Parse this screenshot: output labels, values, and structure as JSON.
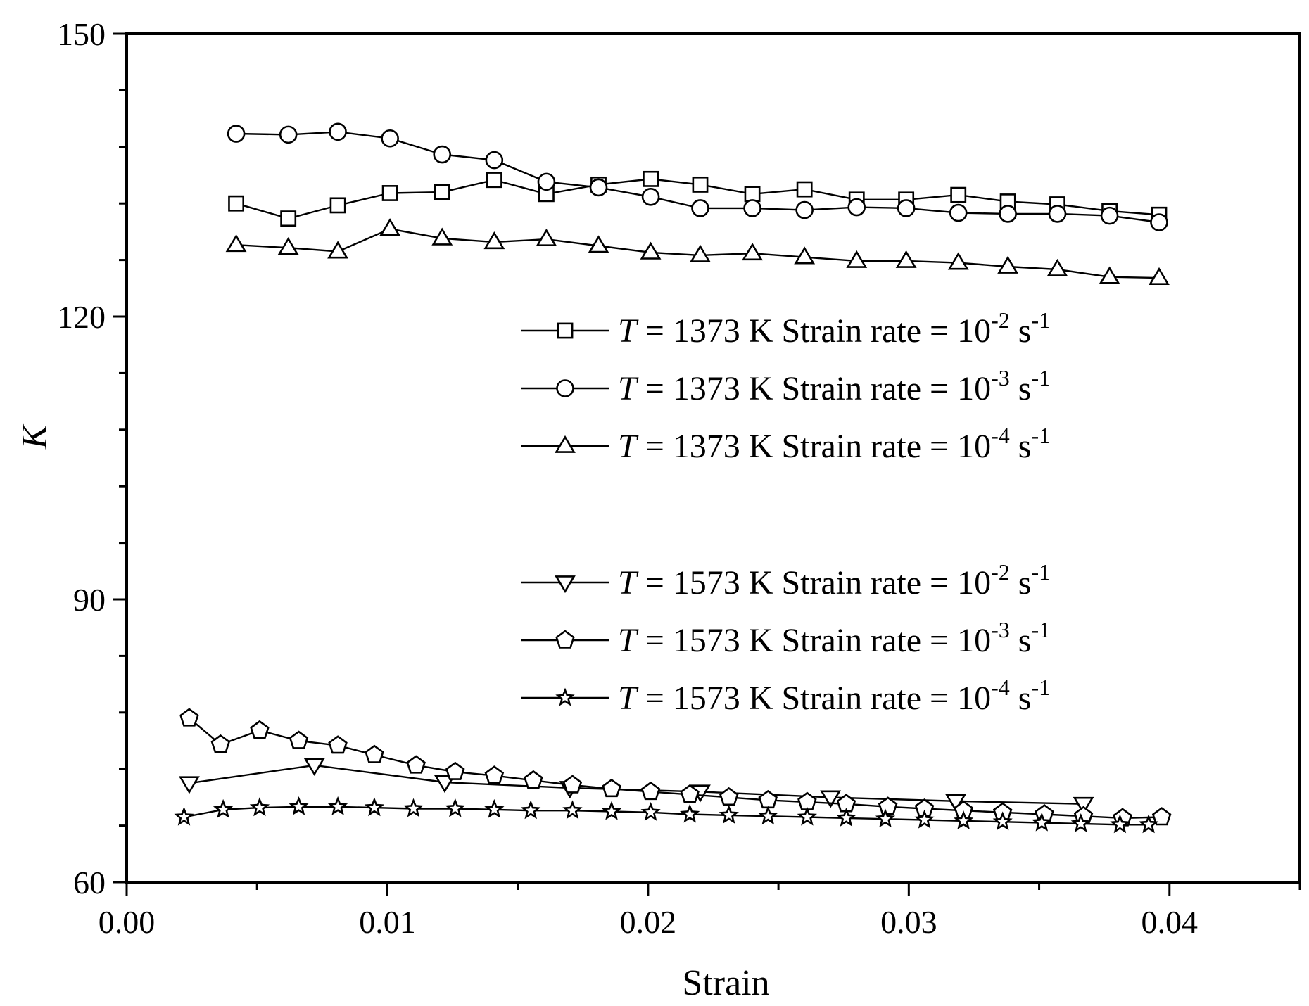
{
  "chart_data": {
    "type": "line",
    "title": "",
    "xlabel": "Strain",
    "ylabel": "K",
    "xlim": [
      0.0,
      0.045
    ],
    "ylim": [
      60,
      150
    ],
    "x_ticks": [
      0.0,
      0.01,
      0.02,
      0.03,
      0.04
    ],
    "x_tick_labels": [
      "0.00",
      "0.01",
      "0.02",
      "0.03",
      "0.04"
    ],
    "y_ticks": [
      60,
      90,
      120,
      150
    ],
    "y_tick_labels": [
      "60",
      "90",
      "120",
      "150"
    ],
    "y_minor_step": 6,
    "x_minor_step": 0.005,
    "legend_position": "right",
    "series": [
      {
        "name": "T = 1373 K Strain rate = 10-2 s-1",
        "legend": {
          "var": "T",
          "text": " = 1373 K Strain rate = 10",
          "exp": "-2",
          "unit": " s",
          "unit_exp": "-1"
        },
        "marker": "square",
        "x": [
          0.0042,
          0.0062,
          0.0081,
          0.0101,
          0.0121,
          0.0141,
          0.0161,
          0.0181,
          0.0201,
          0.022,
          0.024,
          0.026,
          0.028,
          0.0299,
          0.0319,
          0.0338,
          0.0357,
          0.0377,
          0.0396
        ],
        "y": [
          132.0,
          130.4,
          131.8,
          133.1,
          133.2,
          134.5,
          133.0,
          134.0,
          134.6,
          134.0,
          133.0,
          133.5,
          132.4,
          132.4,
          132.9,
          132.2,
          131.9,
          131.2,
          130.8
        ]
      },
      {
        "name": "T = 1373 K Strain rate = 10-3 s-1",
        "legend": {
          "var": "T",
          "text": " = 1373 K Strain rate = 10",
          "exp": "-3",
          "unit": " s",
          "unit_exp": "-1"
        },
        "marker": "circle",
        "x": [
          0.0042,
          0.0062,
          0.0081,
          0.0101,
          0.0121,
          0.0141,
          0.0161,
          0.0181,
          0.0201,
          0.022,
          0.024,
          0.026,
          0.028,
          0.0299,
          0.0319,
          0.0338,
          0.0357,
          0.0377,
          0.0396
        ],
        "y": [
          139.4,
          139.3,
          139.6,
          138.9,
          137.2,
          136.6,
          134.3,
          133.7,
          132.7,
          131.5,
          131.5,
          131.3,
          131.6,
          131.5,
          131.0,
          130.9,
          130.9,
          130.7,
          130.0
        ]
      },
      {
        "name": "T = 1373 K Strain rate = 10-4 s-1",
        "legend": {
          "var": "T",
          "text": " = 1373 K Strain rate = 10",
          "exp": "-4",
          "unit": " s",
          "unit_exp": "-1"
        },
        "marker": "triangle-up",
        "x": [
          0.0042,
          0.0062,
          0.0081,
          0.0101,
          0.0121,
          0.0141,
          0.0161,
          0.0181,
          0.0201,
          0.022,
          0.024,
          0.026,
          0.028,
          0.0299,
          0.0319,
          0.0338,
          0.0357,
          0.0377,
          0.0396
        ],
        "y": [
          127.6,
          127.3,
          126.9,
          129.3,
          128.3,
          127.9,
          128.2,
          127.5,
          126.8,
          126.5,
          126.7,
          126.3,
          125.9,
          125.9,
          125.7,
          125.3,
          125.0,
          124.2,
          124.1
        ]
      },
      {
        "name": "T = 1573 K Strain rate = 10-2 s-1",
        "legend": {
          "var": "T",
          "text": " = 1573 K Strain rate = 10",
          "exp": "-2",
          "unit": " s",
          "unit_exp": "-1"
        },
        "marker": "triangle-down",
        "x": [
          0.0024,
          0.0072,
          0.0122,
          0.017,
          0.022,
          0.027,
          0.0318,
          0.0367
        ],
        "y": [
          70.5,
          72.4,
          70.6,
          70.0,
          69.6,
          69.0,
          68.6,
          68.3
        ]
      },
      {
        "name": "T = 1573 K Strain rate = 10-3 s-1",
        "legend": {
          "var": "T",
          "text": " = 1573 K Strain rate = 10",
          "exp": "-3",
          "unit": " s",
          "unit_exp": "-1"
        },
        "marker": "pentagon",
        "x": [
          0.0024,
          0.0036,
          0.0051,
          0.0066,
          0.0081,
          0.0095,
          0.0111,
          0.0126,
          0.0141,
          0.0156,
          0.0171,
          0.0186,
          0.0201,
          0.0216,
          0.0231,
          0.0246,
          0.0261,
          0.0276,
          0.0292,
          0.0306,
          0.0321,
          0.0336,
          0.0352,
          0.0367,
          0.0382,
          0.0397
        ],
        "y": [
          77.4,
          74.6,
          76.1,
          75.0,
          74.5,
          73.5,
          72.4,
          71.7,
          71.3,
          70.8,
          70.3,
          69.9,
          69.6,
          69.3,
          69.0,
          68.7,
          68.5,
          68.3,
          68.0,
          67.8,
          67.6,
          67.4,
          67.2,
          67.0,
          66.8,
          66.9
        ]
      },
      {
        "name": "T = 1573 K Strain rate = 10-4 s-1",
        "legend": {
          "var": "T",
          "text": " = 1573 K Strain rate = 10",
          "exp": "-4",
          "unit": " s",
          "unit_exp": "-1"
        },
        "marker": "star",
        "x": [
          0.0022,
          0.0037,
          0.0051,
          0.0066,
          0.0081,
          0.0095,
          0.011,
          0.0126,
          0.0141,
          0.0155,
          0.0171,
          0.0186,
          0.0201,
          0.0216,
          0.0231,
          0.0246,
          0.0261,
          0.0276,
          0.0291,
          0.0306,
          0.0321,
          0.0336,
          0.0351,
          0.0366,
          0.0381,
          0.0392
        ],
        "y": [
          66.9,
          67.7,
          67.9,
          68.0,
          68.0,
          67.9,
          67.8,
          67.8,
          67.7,
          67.6,
          67.6,
          67.5,
          67.4,
          67.2,
          67.1,
          67.0,
          66.9,
          66.8,
          66.7,
          66.6,
          66.5,
          66.4,
          66.3,
          66.2,
          66.1,
          66.1
        ]
      }
    ]
  }
}
